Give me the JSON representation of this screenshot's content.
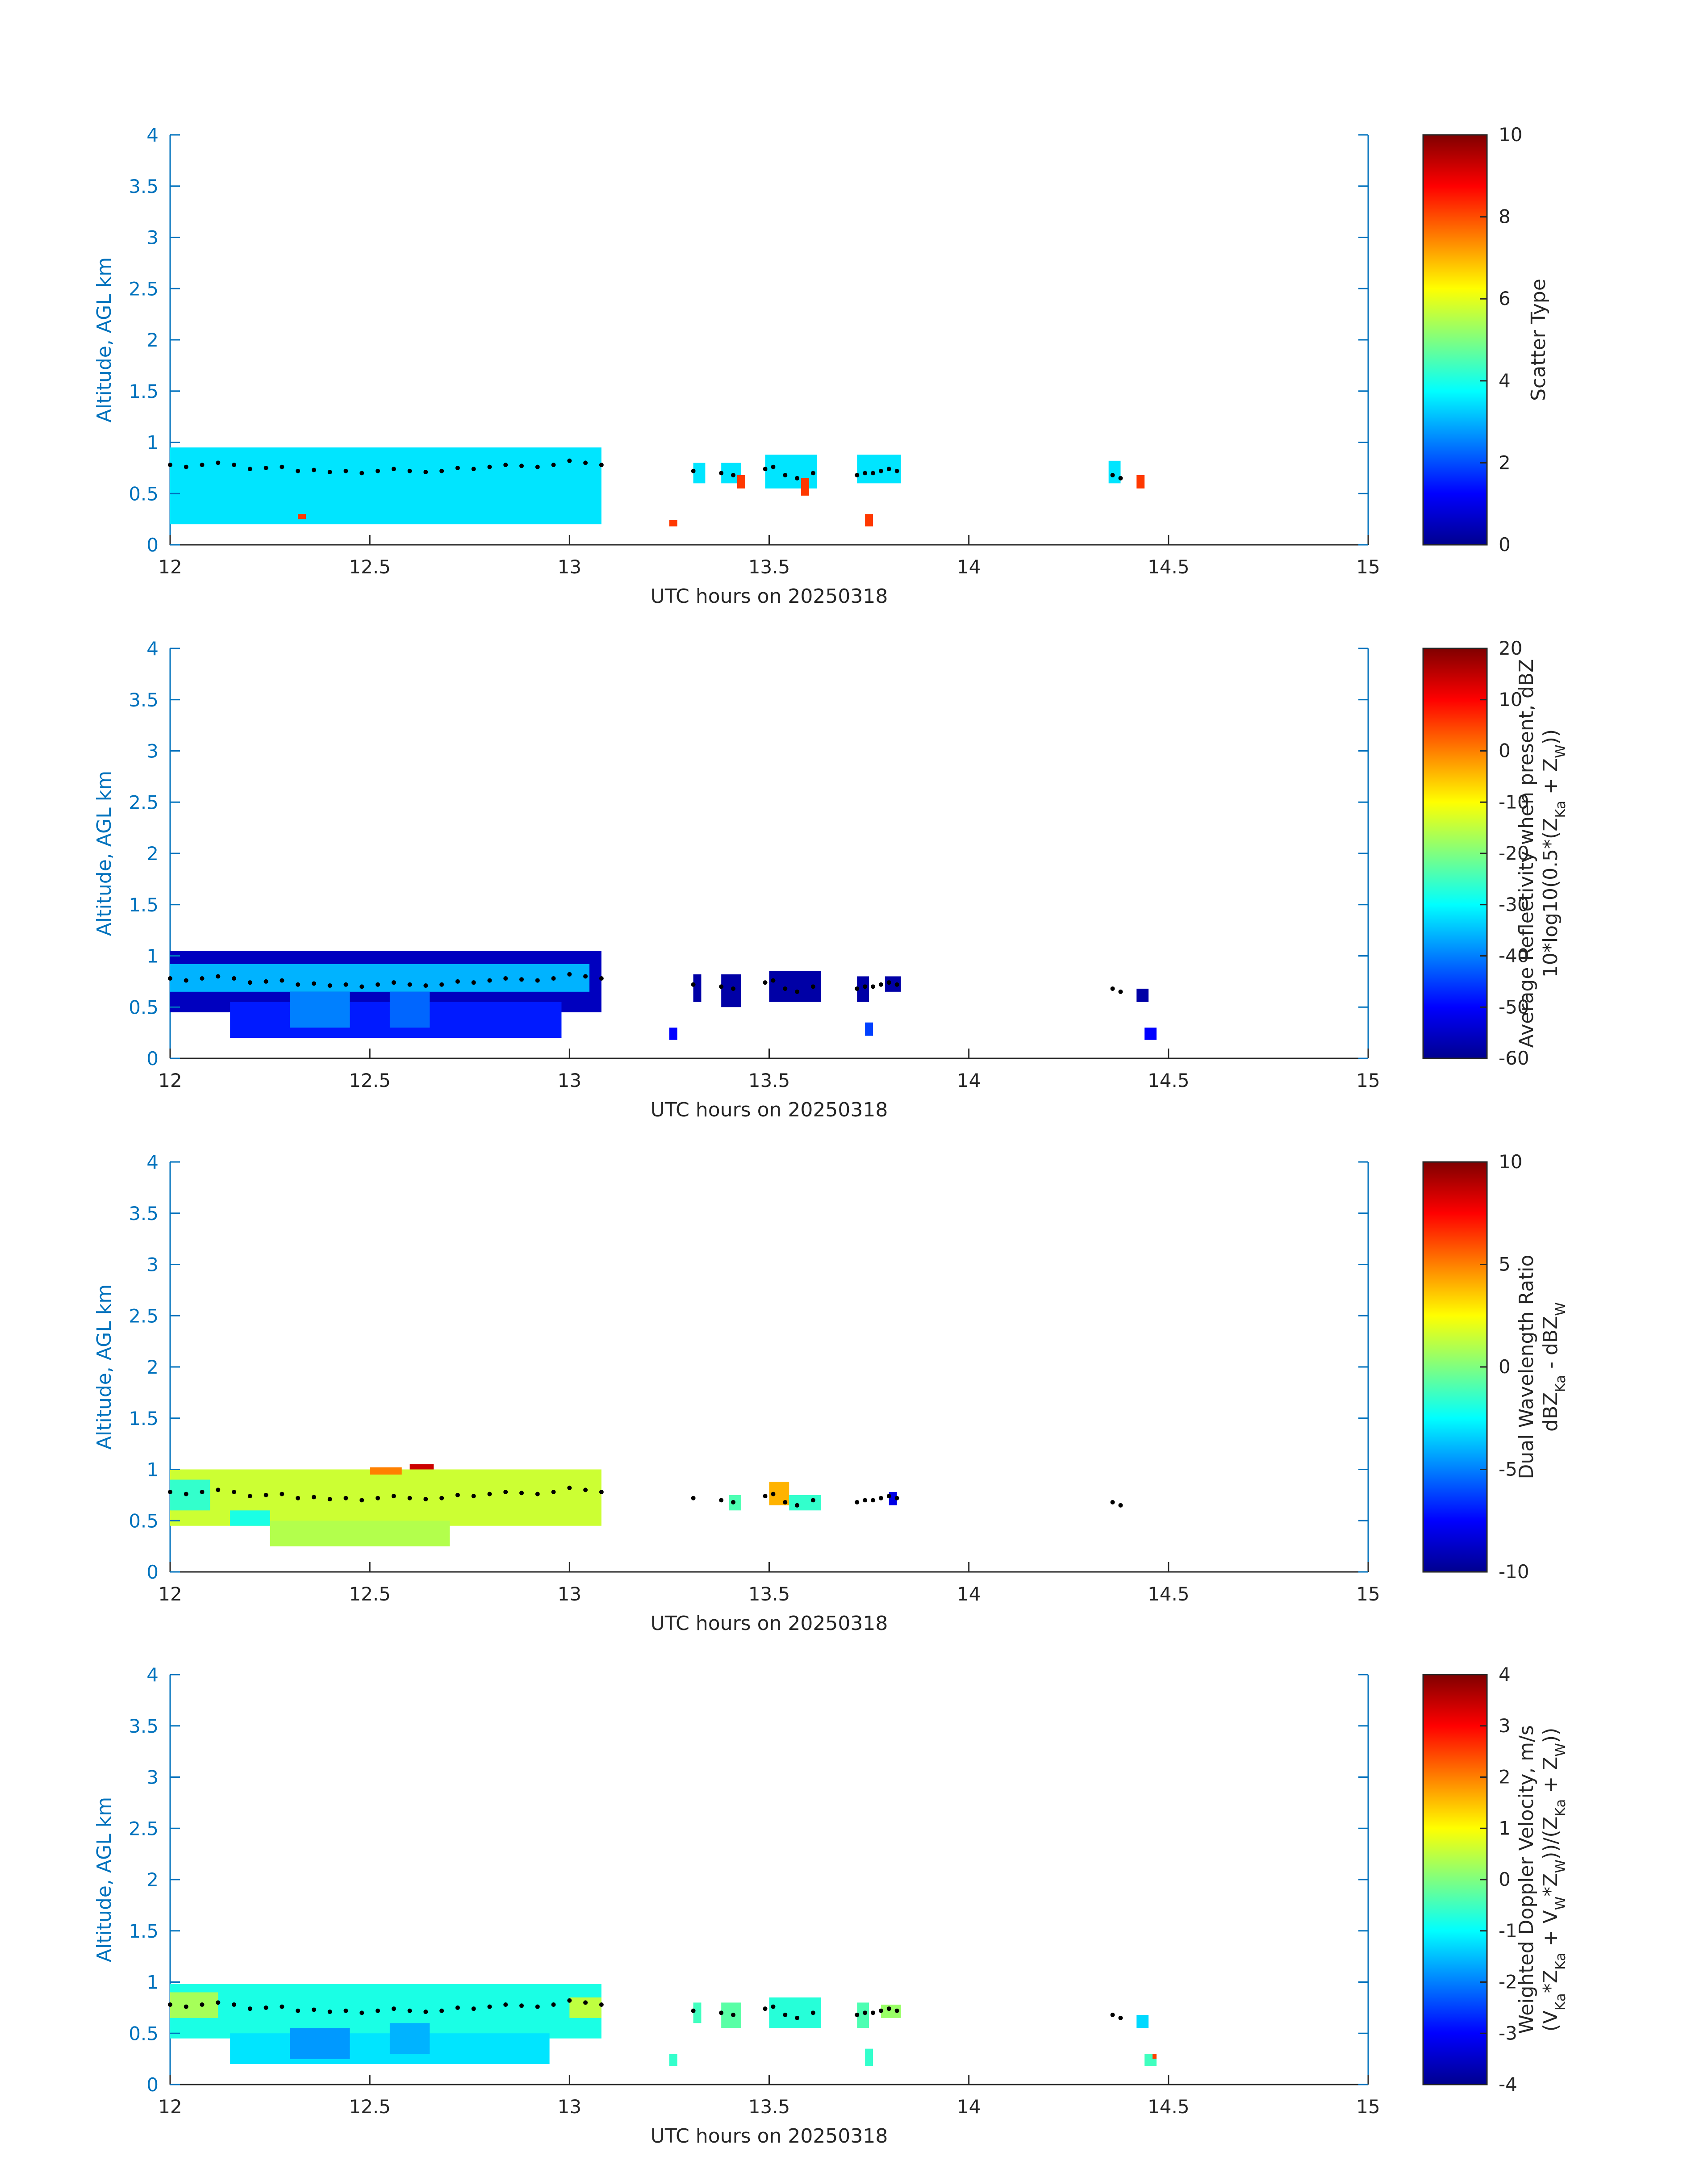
{
  "chart_data": [
    {
      "type": "heatmap",
      "xlabel": "UTC hours on 20250318",
      "ylabel": "Altitude, AGL km",
      "xlim": [
        12,
        15
      ],
      "ylim": [
        0,
        4
      ],
      "xticks": [
        "12",
        "12.5",
        "13",
        "13.5",
        "14",
        "14.5",
        "15"
      ],
      "yticks": [
        "0",
        "0.5",
        "1",
        "1.5",
        "2",
        "2.5",
        "3",
        "3.5",
        "4"
      ],
      "colorbar": {
        "label_lines": [
          "Scatter Type"
        ],
        "range": [
          0,
          10
        ],
        "ticks": [
          "0",
          "2",
          "4",
          "6",
          "8",
          "10"
        ]
      },
      "regions": [
        {
          "x0": 12.0,
          "x1": 13.08,
          "y0": 0.2,
          "y1": 0.95,
          "value": 3.5
        },
        {
          "x0": 13.31,
          "x1": 13.34,
          "y0": 0.6,
          "y1": 0.8,
          "value": 3.5
        },
        {
          "x0": 13.38,
          "x1": 13.43,
          "y0": 0.6,
          "y1": 0.8,
          "value": 3.5
        },
        {
          "x0": 13.49,
          "x1": 13.62,
          "y0": 0.55,
          "y1": 0.88,
          "value": 3.5
        },
        {
          "x0": 13.72,
          "x1": 13.83,
          "y0": 0.6,
          "y1": 0.88,
          "value": 3.5
        },
        {
          "x0": 14.35,
          "x1": 14.38,
          "y0": 0.6,
          "y1": 0.82,
          "value": 3.5
        },
        {
          "x0": 12.32,
          "x1": 12.34,
          "y0": 0.25,
          "y1": 0.3,
          "value": 8.2
        },
        {
          "x0": 13.25,
          "x1": 13.27,
          "y0": 0.18,
          "y1": 0.24,
          "value": 8.2
        },
        {
          "x0": 13.42,
          "x1": 13.44,
          "y0": 0.55,
          "y1": 0.68,
          "value": 8.2
        },
        {
          "x0": 13.58,
          "x1": 13.6,
          "y0": 0.48,
          "y1": 0.65,
          "value": 8.2
        },
        {
          "x0": 13.74,
          "x1": 13.76,
          "y0": 0.18,
          "y1": 0.3,
          "value": 8.2
        },
        {
          "x0": 14.42,
          "x1": 14.44,
          "y0": 0.55,
          "y1": 0.68,
          "value": 8.2
        }
      ]
    },
    {
      "type": "heatmap",
      "xlabel": "UTC hours on 20250318",
      "ylabel": "Altitude, AGL km",
      "xlim": [
        12,
        15
      ],
      "ylim": [
        0,
        4
      ],
      "xticks": [
        "12",
        "12.5",
        "13",
        "13.5",
        "14",
        "14.5",
        "15"
      ],
      "yticks": [
        "0",
        "0.5",
        "1",
        "1.5",
        "2",
        "2.5",
        "3",
        "3.5",
        "4"
      ],
      "colorbar": {
        "label_lines": [
          "Average Reflectivity when present, dBZ",
          "10*log10(0.5*(Z_Ka + Z_W))"
        ],
        "range": [
          -60,
          20
        ],
        "ticks": [
          "-60",
          "-50",
          "-40",
          "-30",
          "-20",
          "-10",
          "0",
          "10",
          "20"
        ]
      },
      "regions": [
        {
          "x0": 12.0,
          "x1": 13.08,
          "y0": 0.45,
          "y1": 1.05,
          "value": -55
        },
        {
          "x0": 12.15,
          "x1": 12.98,
          "y0": 0.2,
          "y1": 0.55,
          "value": -48
        },
        {
          "x0": 12.0,
          "x1": 13.05,
          "y0": 0.65,
          "y1": 0.92,
          "value": -36
        },
        {
          "x0": 12.3,
          "x1": 12.45,
          "y0": 0.3,
          "y1": 0.65,
          "value": -40
        },
        {
          "x0": 12.55,
          "x1": 12.65,
          "y0": 0.3,
          "y1": 0.65,
          "value": -42
        },
        {
          "x0": 13.31,
          "x1": 13.33,
          "y0": 0.55,
          "y1": 0.82,
          "value": -57
        },
        {
          "x0": 13.38,
          "x1": 13.43,
          "y0": 0.5,
          "y1": 0.82,
          "value": -57
        },
        {
          "x0": 13.5,
          "x1": 13.63,
          "y0": 0.55,
          "y1": 0.85,
          "value": -57
        },
        {
          "x0": 13.72,
          "x1": 13.75,
          "y0": 0.55,
          "y1": 0.8,
          "value": -57
        },
        {
          "x0": 13.79,
          "x1": 13.83,
          "y0": 0.65,
          "y1": 0.8,
          "value": -57
        },
        {
          "x0": 13.25,
          "x1": 13.27,
          "y0": 0.18,
          "y1": 0.3,
          "value": -50
        },
        {
          "x0": 13.74,
          "x1": 13.76,
          "y0": 0.22,
          "y1": 0.35,
          "value": -45
        },
        {
          "x0": 14.42,
          "x1": 14.45,
          "y0": 0.55,
          "y1": 0.68,
          "value": -57
        },
        {
          "x0": 14.44,
          "x1": 14.47,
          "y0": 0.18,
          "y1": 0.3,
          "value": -50
        }
      ]
    },
    {
      "type": "heatmap",
      "xlabel": "UTC hours on 20250318",
      "ylabel": "Altitude, AGL km",
      "xlim": [
        12,
        15
      ],
      "ylim": [
        0,
        4
      ],
      "xticks": [
        "12",
        "12.5",
        "13",
        "13.5",
        "14",
        "14.5",
        "15"
      ],
      "yticks": [
        "0",
        "0.5",
        "1",
        "1.5",
        "2",
        "2.5",
        "3",
        "3.5",
        "4"
      ],
      "colorbar": {
        "label_lines": [
          "Dual Wavelength Ratio",
          "dBZ_Ka - dBZ_W"
        ],
        "range": [
          -10,
          10
        ],
        "ticks": [
          "-10",
          "-5",
          "0",
          "5",
          "10"
        ]
      },
      "regions": [
        {
          "x0": 12.0,
          "x1": 13.08,
          "y0": 0.45,
          "y1": 1.0,
          "value": 1.5
        },
        {
          "x0": 12.25,
          "x1": 12.7,
          "y0": 0.25,
          "y1": 0.5,
          "value": 1.0
        },
        {
          "x0": 12.0,
          "x1": 12.1,
          "y0": 0.6,
          "y1": 0.9,
          "value": -1.5
        },
        {
          "x0": 12.15,
          "x1": 12.25,
          "y0": 0.45,
          "y1": 0.6,
          "value": -2.0
        },
        {
          "x0": 12.6,
          "x1": 12.66,
          "y0": 1.0,
          "y1": 1.05,
          "value": 8.5
        },
        {
          "x0": 12.5,
          "x1": 12.58,
          "y0": 0.95,
          "y1": 1.02,
          "value": 5.0
        },
        {
          "x0": 13.4,
          "x1": 13.43,
          "y0": 0.6,
          "y1": 0.75,
          "value": -1.0
        },
        {
          "x0": 13.5,
          "x1": 13.55,
          "y0": 0.65,
          "y1": 0.88,
          "value": 4.0
        },
        {
          "x0": 13.55,
          "x1": 13.63,
          "y0": 0.6,
          "y1": 0.75,
          "value": -1.5
        },
        {
          "x0": 13.8,
          "x1": 13.82,
          "y0": 0.65,
          "y1": 0.78,
          "value": -8.0
        }
      ]
    },
    {
      "type": "heatmap",
      "xlabel": "UTC hours on 20250318",
      "ylabel": "Altitude, AGL km",
      "xlim": [
        12,
        15
      ],
      "ylim": [
        0,
        4
      ],
      "xticks": [
        "12",
        "12.5",
        "13",
        "13.5",
        "14",
        "14.5",
        "15"
      ],
      "yticks": [
        "0",
        "0.5",
        "1",
        "1.5",
        "2",
        "2.5",
        "3",
        "3.5",
        "4"
      ],
      "colorbar": {
        "label_lines": [
          "Weighted Doppler Velocity, m/s",
          "(V_Ka*Z_Ka + V_W*Z_W))/(Z_Ka + Z_W))"
        ],
        "range": [
          -4,
          4
        ],
        "ticks": [
          "-4",
          "-3",
          "-2",
          "-1",
          "0",
          "1",
          "2",
          "3",
          "4"
        ]
      },
      "regions": [
        {
          "x0": 12.0,
          "x1": 13.08,
          "y0": 0.45,
          "y1": 0.98,
          "value": -0.8
        },
        {
          "x0": 12.15,
          "x1": 12.95,
          "y0": 0.2,
          "y1": 0.5,
          "value": -1.2
        },
        {
          "x0": 12.0,
          "x1": 12.12,
          "y0": 0.65,
          "y1": 0.9,
          "value": 0.3
        },
        {
          "x0": 12.3,
          "x1": 12.45,
          "y0": 0.25,
          "y1": 0.55,
          "value": -1.8
        },
        {
          "x0": 12.55,
          "x1": 12.65,
          "y0": 0.3,
          "y1": 0.6,
          "value": -1.6
        },
        {
          "x0": 13.0,
          "x1": 13.08,
          "y0": 0.65,
          "y1": 0.85,
          "value": 0.5
        },
        {
          "x0": 13.31,
          "x1": 13.33,
          "y0": 0.6,
          "y1": 0.8,
          "value": -0.5
        },
        {
          "x0": 13.38,
          "x1": 13.43,
          "y0": 0.55,
          "y1": 0.8,
          "value": -0.3
        },
        {
          "x0": 13.5,
          "x1": 13.63,
          "y0": 0.55,
          "y1": 0.85,
          "value": -0.7
        },
        {
          "x0": 13.72,
          "x1": 13.75,
          "y0": 0.55,
          "y1": 0.8,
          "value": -0.4
        },
        {
          "x0": 13.78,
          "x1": 13.83,
          "y0": 0.65,
          "y1": 0.78,
          "value": 0.2
        },
        {
          "x0": 13.25,
          "x1": 13.27,
          "y0": 0.18,
          "y1": 0.3,
          "value": -0.6
        },
        {
          "x0": 13.74,
          "x1": 13.76,
          "y0": 0.18,
          "y1": 0.35,
          "value": -0.6
        },
        {
          "x0": 14.42,
          "x1": 14.45,
          "y0": 0.55,
          "y1": 0.68,
          "value": -1.3
        },
        {
          "x0": 14.44,
          "x1": 14.47,
          "y0": 0.18,
          "y1": 0.3,
          "value": -0.5
        },
        {
          "x0": 14.46,
          "x1": 14.47,
          "y0": 0.25,
          "y1": 0.3,
          "value": 2.5
        }
      ],
      "cloud_base_dots": true
    }
  ],
  "cloud_base": {
    "x": [
      12.0,
      12.04,
      12.08,
      12.12,
      12.16,
      12.2,
      12.24,
      12.28,
      12.32,
      12.36,
      12.4,
      12.44,
      12.48,
      12.52,
      12.56,
      12.6,
      12.64,
      12.68,
      12.72,
      12.76,
      12.8,
      12.84,
      12.88,
      12.92,
      12.96,
      13.0,
      13.04,
      13.08,
      13.31,
      13.38,
      13.41,
      13.49,
      13.51,
      13.54,
      13.57,
      13.61,
      13.72,
      13.74,
      13.76,
      13.78,
      13.8,
      13.82,
      14.36,
      14.38
    ],
    "y": [
      0.78,
      0.76,
      0.78,
      0.8,
      0.78,
      0.74,
      0.75,
      0.76,
      0.72,
      0.73,
      0.71,
      0.72,
      0.7,
      0.72,
      0.74,
      0.72,
      0.71,
      0.72,
      0.75,
      0.74,
      0.76,
      0.78,
      0.77,
      0.76,
      0.78,
      0.82,
      0.8,
      0.78,
      0.72,
      0.7,
      0.68,
      0.74,
      0.76,
      0.68,
      0.65,
      0.7,
      0.68,
      0.7,
      0.7,
      0.72,
      0.74,
      0.72,
      0.68,
      0.65
    ]
  }
}
